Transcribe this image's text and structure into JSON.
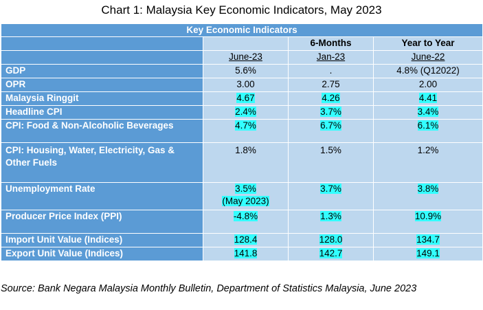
{
  "title": "Chart 1: Malaysia Key Economic Indicators, May 2023",
  "table": {
    "header": "Key Economic Indicators",
    "group_headers": [
      "",
      "",
      "6-Months",
      "Year to Year"
    ],
    "period_headers": [
      "",
      "June-23",
      "Jan-23",
      "June-22"
    ],
    "rows": [
      {
        "label": "GDP",
        "c1": "5.6%",
        "c1b": "",
        "c2": ".",
        "c3": "4.8% (Q12022)"
      },
      {
        "label": "OPR",
        "c1": "3.00",
        "c1b": "",
        "c2": "2.75",
        "c3": "2.00"
      },
      {
        "label": "Malaysia Ringgit",
        "c1": "4.67",
        "c1b": "",
        "c2": "4.26",
        "c3": "4.41"
      },
      {
        "label": "Headline CPI",
        "c1": "2.4%",
        "c1b": "",
        "c2": "3.7%",
        "c3": "3.4%"
      },
      {
        "label": "CPI: Food & Non-Alcoholic Beverages",
        "c1": "4.7%",
        "c1b": "",
        "c2": "6.7%",
        "c3": "6.1%"
      },
      {
        "label": "CPI: Housing, Water, Electricity, Gas & Other Fuels",
        "c1": "1.8%",
        "c1b": "",
        "c2": "1.5%",
        "c3": "1.2%"
      },
      {
        "label": "Unemployment Rate",
        "c1": "3.5%",
        "c1b": "(May 2023)",
        "c2": "3.7%",
        "c3": "3.8%"
      },
      {
        "label": "Producer Price Index (PPI)",
        "c1": "-4.8%",
        "c1b": "",
        "c2": "1.3%",
        "c3": "10.9%"
      },
      {
        "label": "Import Unit Value (Indices)",
        "c1": "128.4",
        "c1b": "",
        "c2": "128.0",
        "c3": "134.7"
      },
      {
        "label": "Export Unit Value (Indices)",
        "c1": "141.8",
        "c1b": "",
        "c2": "142.7",
        "c3": "149.1"
      }
    ]
  },
  "source": "Source: Bank Negara Malaysia Monthly Bulletin, Department of Statistics Malaysia, June 2023",
  "colors": {
    "label_bg": "#5b9bd5",
    "value_bg": "#bdd7ee",
    "highlight": "#33ffff"
  }
}
